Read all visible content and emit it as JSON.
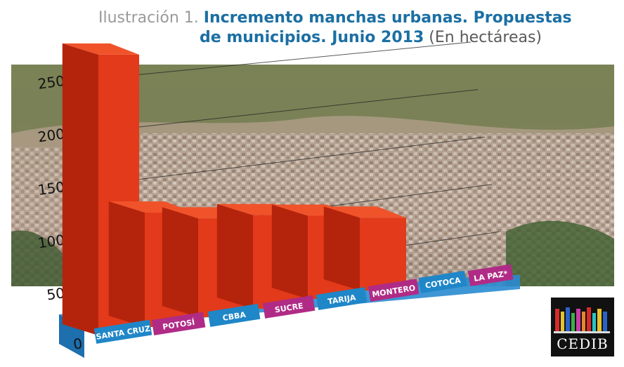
{
  "title": {
    "lead": "Ilustración 1.",
    "main_line1": "Incremento manchas urbanas. Propuestas",
    "main_line2": "de municipios. Junio 2013",
    "unit": "(En hectáreas)"
  },
  "chart_data": {
    "type": "bar",
    "categories": [
      "SANTA CRUZ",
      "POTOSÍ",
      "CBBA",
      "SUCRE",
      "TARIJA",
      "MONTERO",
      "COTOCA",
      "LA PAZ*"
    ],
    "values": [
      27000,
      11000,
      9500,
      9000,
      8000,
      7000,
      0,
      0
    ],
    "yticks": [
      0,
      5000,
      10000,
      15000,
      20000,
      25000
    ],
    "ylim": [
      0,
      27000
    ],
    "colors": {
      "bar_front": "#e23a1a",
      "bar_top": "#f0532a",
      "bar_side": "#b4240c",
      "label_blue": "#1f86c8",
      "label_magenta": "#b02b86",
      "platform": "#2a8bd0"
    }
  },
  "logo": {
    "text": "CEDIB"
  }
}
